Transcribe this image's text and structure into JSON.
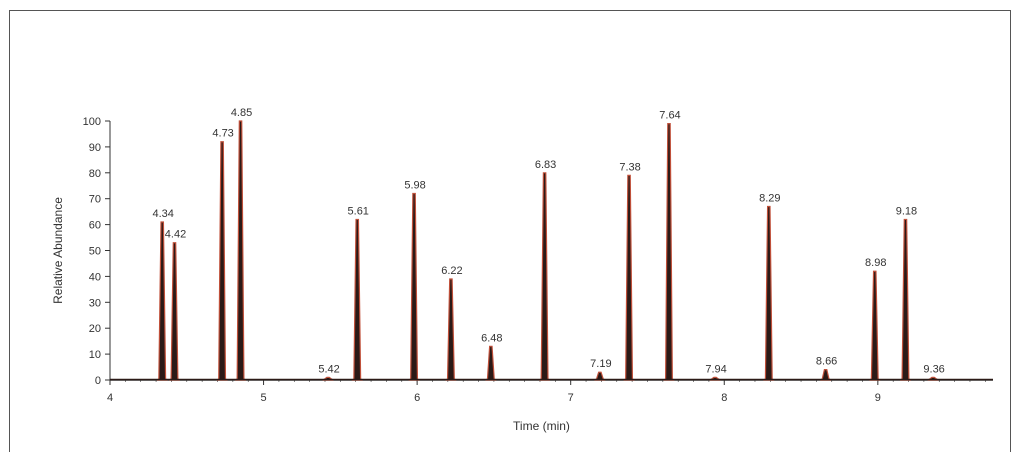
{
  "chart_data": {
    "type": "line",
    "title": "",
    "xlabel": "Time (min)",
    "ylabel": "Relative Abundance",
    "xlim": [
      4,
      9.75
    ],
    "ylim": [
      0,
      100
    ],
    "x_ticks": [
      "4",
      "5",
      "6",
      "7",
      "8",
      "9"
    ],
    "y_ticks": [
      "0",
      "10",
      "20",
      "30",
      "40",
      "50",
      "60",
      "70",
      "80",
      "90",
      "100"
    ],
    "grid": false,
    "colors": {
      "trace_fill": "#2b1a17",
      "trace_outline": "#c0503a",
      "axis": "#333333"
    },
    "peaks": [
      {
        "time": 4.34,
        "label": "4.34",
        "height": 61
      },
      {
        "time": 4.42,
        "label": "4.42",
        "height": 53
      },
      {
        "time": 4.73,
        "label": "4.73",
        "height": 92
      },
      {
        "time": 4.85,
        "label": "4.85",
        "height": 100
      },
      {
        "time": 5.42,
        "label": "5.42",
        "height": 1
      },
      {
        "time": 5.61,
        "label": "5.61",
        "height": 62
      },
      {
        "time": 5.98,
        "label": "5.98",
        "height": 72
      },
      {
        "time": 6.22,
        "label": "6.22",
        "height": 39
      },
      {
        "time": 6.48,
        "label": "6.48",
        "height": 13
      },
      {
        "time": 6.83,
        "label": "6.83",
        "height": 80
      },
      {
        "time": 7.19,
        "label": "7.19",
        "height": 3
      },
      {
        "time": 7.38,
        "label": "7.38",
        "height": 79
      },
      {
        "time": 7.64,
        "label": "7.64",
        "height": 99
      },
      {
        "time": 7.94,
        "label": "7.94",
        "height": 1
      },
      {
        "time": 8.29,
        "label": "8.29",
        "height": 67
      },
      {
        "time": 8.66,
        "label": "8.66",
        "height": 4
      },
      {
        "time": 8.98,
        "label": "8.98",
        "height": 42
      },
      {
        "time": 9.18,
        "label": "9.18",
        "height": 62
      },
      {
        "time": 9.36,
        "label": "9.36",
        "height": 1
      }
    ]
  }
}
